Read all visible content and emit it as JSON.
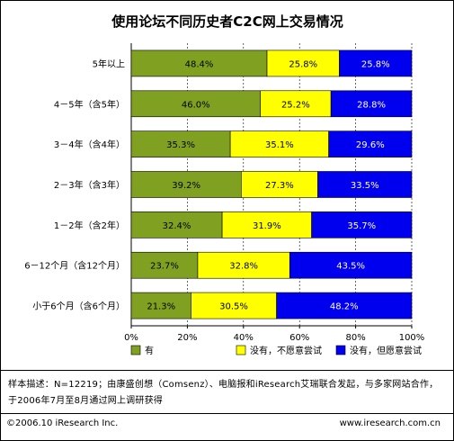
{
  "chart_data": {
    "type": "bar",
    "stacked": true,
    "orientation": "horizontal",
    "title": "使用论坛不同历史者C2C网上交易情况",
    "categories": [
      "5年以上",
      "4－5年（含5年）",
      "3－4年（含4年）",
      "2－3年（含3年）",
      "1－2年（含2年）",
      "6－12个月（含12个月）",
      "小于6个月（含6个月）"
    ],
    "series": [
      {
        "name": "有",
        "color": "#7fa020",
        "values": [
          48.4,
          46.0,
          35.3,
          39.2,
          32.4,
          23.7,
          21.3
        ],
        "labels": [
          "48.4%",
          "46.0%",
          "35.3%",
          "39.2%",
          "32.4%",
          "23.7%",
          "21.3%"
        ]
      },
      {
        "name": "没有，不愿意尝试",
        "color": "#ffff00",
        "values": [
          25.8,
          25.2,
          35.1,
          27.3,
          31.9,
          32.8,
          30.5
        ],
        "labels": [
          "25.8%",
          "25.2%",
          "35.1%",
          "27.3%",
          "31.9%",
          "32.8%",
          "30.5%"
        ]
      },
      {
        "name": "没有，但愿意尝试",
        "color": "#0000ee",
        "values": [
          25.8,
          28.8,
          29.6,
          33.5,
          35.7,
          43.5,
          48.2
        ],
        "labels": [
          "25.8%",
          "28.8%",
          "29.6%",
          "33.5%",
          "35.7%",
          "43.5%",
          "48.2%"
        ]
      }
    ],
    "xticks": [
      "0%",
      "20%",
      "40%",
      "60%",
      "80%",
      "100%"
    ],
    "xlim": [
      0,
      100
    ],
    "legend_position": "bottom",
    "grid": true
  },
  "note_text": "样本描述：N=12219；由康盛创想（Comsenz）、电脑报和iResearch艾瑞联合发起，与多家网站合作，于2006年7月至8月通过网上调研获得",
  "footer": {
    "copyright": "©2006.10 iResearch Inc.",
    "website": "www.iresearch.com.cn"
  }
}
